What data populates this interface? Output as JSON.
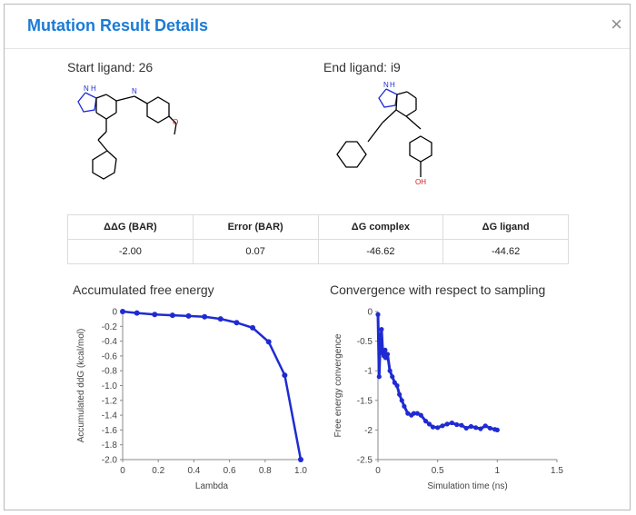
{
  "dialog": {
    "title": "Mutation Result Details",
    "close_label": "×"
  },
  "ligands": {
    "start_label": "Start ligand: 26",
    "end_label": "End ligand: i9",
    "atoms": {
      "nh": "N",
      "h": "H",
      "n": "N",
      "o": "O",
      "oh": "OH",
      "hn": "N",
      "hh": "H"
    }
  },
  "results": {
    "headers": [
      "ΔΔG (BAR)",
      "Error (BAR)",
      "ΔG complex",
      "ΔG ligand"
    ],
    "values": [
      "-2.00",
      "0.07",
      "-46.62",
      "-44.62"
    ]
  },
  "chart_data": [
    {
      "type": "line",
      "title": "Accumulated free energy",
      "xlabel": "Lambda",
      "ylabel": "Accumulated ddG (kcal/mol)",
      "xlim": [
        0,
        1.0
      ],
      "ylim": [
        -2.0,
        0
      ],
      "xticks": [
        "0",
        "0.2",
        "0.4",
        "0.6",
        "0.8",
        "1.0"
      ],
      "yticks": [
        "0",
        "-0.2",
        "-0.4",
        "-0.6",
        "-0.8",
        "-1.0",
        "-1.2",
        "-1.4",
        "-1.6",
        "-1.8",
        "-2.0"
      ],
      "series": [
        {
          "color": "#1f2bd1",
          "x": [
            0,
            0.08,
            0.18,
            0.28,
            0.37,
            0.46,
            0.55,
            0.64,
            0.73,
            0.82,
            0.91,
            1.0
          ],
          "y": [
            0,
            -0.02,
            -0.04,
            -0.05,
            -0.06,
            -0.07,
            -0.1,
            -0.15,
            -0.22,
            -0.41,
            -0.86,
            -2.0
          ]
        }
      ]
    },
    {
      "type": "scatter",
      "title": "Convergence with respect to sampling",
      "xlabel": "Simulation time (ns)",
      "ylabel": "Free energy convergence",
      "xlim": [
        0,
        1.5
      ],
      "ylim": [
        -2.5,
        0
      ],
      "xticks": [
        "0",
        "0.5",
        "1",
        "1.5"
      ],
      "yticks": [
        "0",
        "-0.5",
        "-1",
        "-1.5",
        "-2",
        "-2.5"
      ],
      "series": [
        {
          "color": "#1f2bd1",
          "x": [
            0.0,
            0.01,
            0.02,
            0.03,
            0.04,
            0.05,
            0.06,
            0.07,
            0.08,
            0.1,
            0.12,
            0.14,
            0.16,
            0.18,
            0.2,
            0.22,
            0.25,
            0.28,
            0.3,
            0.33,
            0.36,
            0.4,
            0.43,
            0.46,
            0.5,
            0.54,
            0.58,
            0.62,
            0.66,
            0.7,
            0.74,
            0.78,
            0.82,
            0.86,
            0.9,
            0.94,
            0.98,
            1.0
          ],
          "y": [
            -0.05,
            -1.1,
            -0.5,
            -0.3,
            -0.7,
            -0.75,
            -0.65,
            -0.78,
            -0.72,
            -1.0,
            -1.1,
            -1.2,
            -1.25,
            -1.4,
            -1.5,
            -1.6,
            -1.72,
            -1.75,
            -1.72,
            -1.72,
            -1.75,
            -1.85,
            -1.9,
            -1.95,
            -1.96,
            -1.93,
            -1.9,
            -1.88,
            -1.91,
            -1.92,
            -1.97,
            -1.94,
            -1.96,
            -1.98,
            -1.93,
            -1.97,
            -1.99,
            -2.0
          ]
        }
      ]
    }
  ]
}
